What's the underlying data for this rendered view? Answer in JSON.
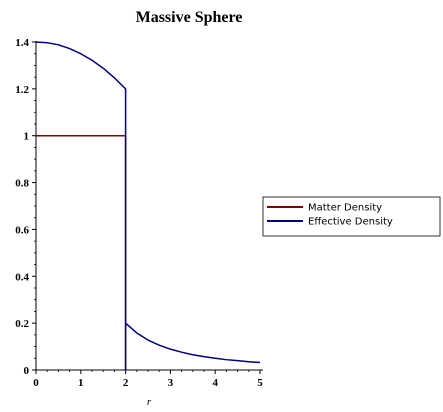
{
  "chart_data": {
    "type": "line",
    "title": "Massive Sphere",
    "xlabel": "r",
    "ylabel": "",
    "xlim": [
      0,
      5
    ],
    "ylim": [
      0,
      1.4
    ],
    "x_ticks": [
      "0",
      "1",
      "2",
      "3",
      "4",
      "5"
    ],
    "y_ticks": [
      "0",
      "0.2",
      "0.4",
      "0.6",
      "0.8",
      "1",
      "1.2",
      "1.4"
    ],
    "grid": false,
    "legend_position": "right",
    "series": [
      {
        "name": "Matter Density",
        "color": "#800000",
        "x": [
          0,
          1,
          2,
          2
        ],
        "y": [
          1,
          1,
          1,
          0
        ]
      },
      {
        "name": "Effective Density",
        "color": "#000080",
        "x": [
          0,
          0.25,
          0.5,
          0.75,
          1.0,
          1.25,
          1.5,
          1.75,
          2,
          2,
          2,
          2.25,
          2.5,
          2.75,
          3,
          3.25,
          3.5,
          3.75,
          4,
          4.25,
          4.5,
          4.75,
          5
        ],
        "y": [
          1.4,
          1.397,
          1.388,
          1.372,
          1.35,
          1.322,
          1.288,
          1.247,
          1.2,
          0,
          0.2,
          0.158,
          0.128,
          0.106,
          0.089,
          0.076,
          0.065,
          0.057,
          0.05,
          0.044,
          0.04,
          0.035,
          0.032
        ]
      }
    ]
  }
}
